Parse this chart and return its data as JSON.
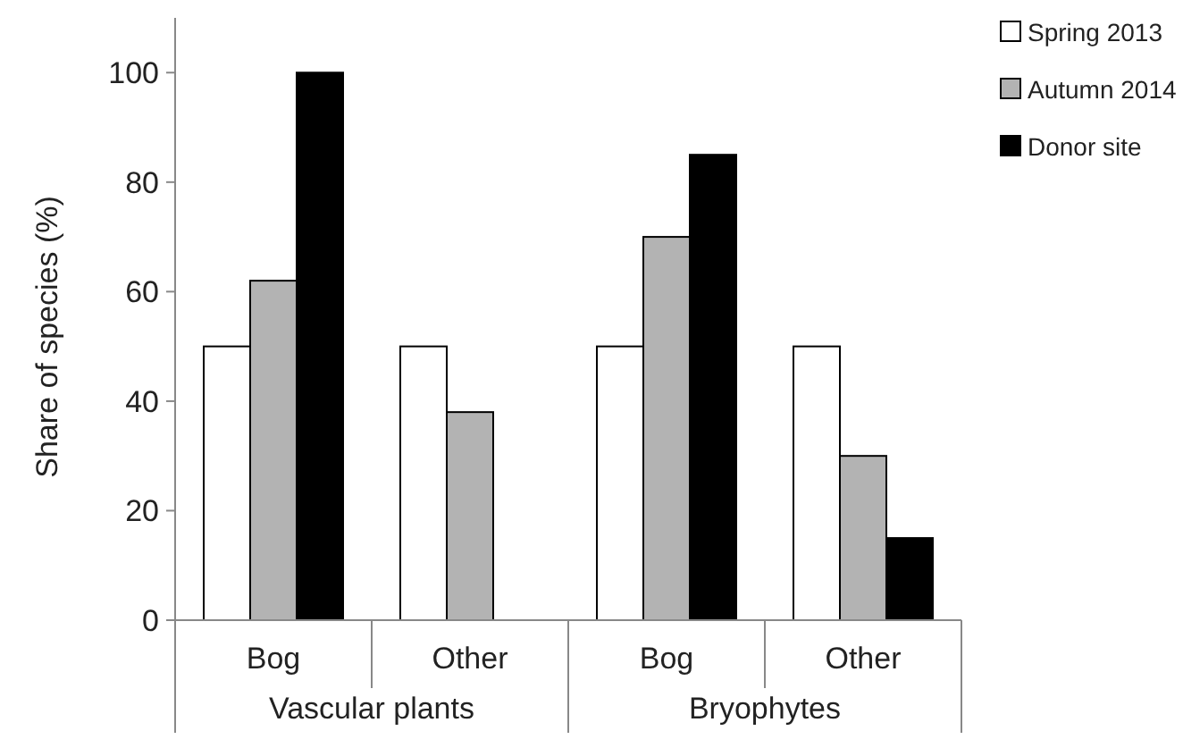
{
  "chart_data": {
    "type": "bar",
    "ylabel": "Share of species (%)",
    "categories": [
      "Bog",
      "Other",
      "Bog",
      "Other"
    ],
    "annotations": [
      "Vascular plants",
      "Bryophytes"
    ],
    "series": [
      {
        "name": "Spring 2013",
        "color": "#ffffff",
        "values": [
          50,
          50,
          50,
          50
        ]
      },
      {
        "name": "Autumn 2014",
        "color": "#b3b3b3",
        "values": [
          62,
          38,
          70,
          30
        ]
      },
      {
        "name": "Donor site",
        "color": "#000000",
        "values": [
          100,
          0,
          85,
          15
        ]
      }
    ],
    "ylim": [
      0,
      110
    ],
    "yticks": [
      0,
      20,
      40,
      60,
      80,
      100
    ],
    "grid": false,
    "legend": "top right"
  }
}
